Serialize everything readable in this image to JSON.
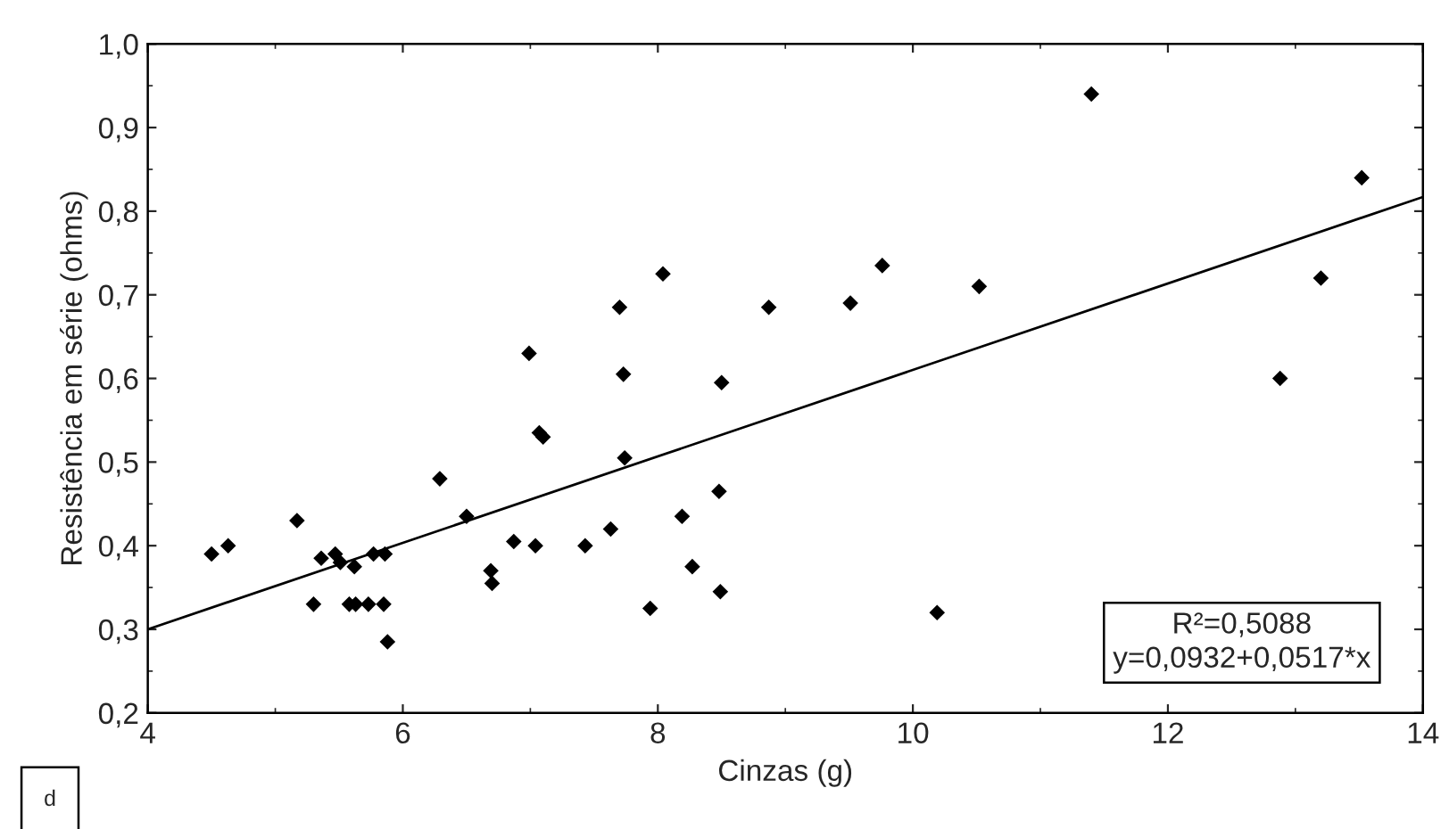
{
  "chart_data": {
    "type": "scatter",
    "xlabel": "Cinzas (g)",
    "ylabel": "Resistência em série (ohms)",
    "xlim": [
      4,
      14
    ],
    "xticks": [
      4,
      6,
      8,
      10,
      12,
      14
    ],
    "ylim": [
      0.2,
      1.0
    ],
    "yticks": [
      {
        "value": 0.2,
        "label": "0,2"
      },
      {
        "value": 0.3,
        "label": "0,3"
      },
      {
        "value": 0.4,
        "label": "0,4"
      },
      {
        "value": 0.5,
        "label": "0,5"
      },
      {
        "value": 0.6,
        "label": "0,6"
      },
      {
        "value": 0.7,
        "label": "0,7"
      },
      {
        "value": 0.8,
        "label": "0,8"
      },
      {
        "value": 0.9,
        "label": "0,9"
      },
      {
        "value": 1.0,
        "label": "1,0"
      }
    ],
    "grid": false,
    "marker": "diamond",
    "series": [
      {
        "color": "#000000",
        "x": [
          4.5,
          4.63,
          5.17,
          5.3,
          5.36,
          5.47,
          5.51,
          5.62,
          5.58,
          5.63,
          5.73,
          5.77,
          5.86,
          5.85,
          5.88,
          6.29,
          6.5,
          6.69,
          6.7,
          6.87,
          6.99,
          7.04,
          7.07,
          7.1,
          7.43,
          7.63,
          7.7,
          7.73,
          7.74,
          7.94,
          8.04,
          8.19,
          8.27,
          8.48,
          8.49,
          8.5,
          8.87,
          9.51,
          9.76,
          10.19,
          10.52,
          11.4,
          12.88,
          13.2,
          13.52
        ],
        "values": [
          0.39,
          0.4,
          0.43,
          0.33,
          0.385,
          0.39,
          0.38,
          0.375,
          0.33,
          0.33,
          0.33,
          0.39,
          0.39,
          0.33,
          0.285,
          0.48,
          0.435,
          0.37,
          0.355,
          0.405,
          0.63,
          0.4,
          0.535,
          0.53,
          0.4,
          0.42,
          0.685,
          0.605,
          0.505,
          0.325,
          0.725,
          0.435,
          0.375,
          0.465,
          0.345,
          0.595,
          0.685,
          0.69,
          0.735,
          0.32,
          0.71,
          0.94,
          0.6,
          0.72,
          0.84
        ]
      },
      {
        "type": "line",
        "color": "#000000",
        "marker": "none",
        "x": [
          4,
          14
        ],
        "values": [
          0.3,
          0.817
        ]
      }
    ],
    "annotations": [
      "R²=0,5088\ny=0,0932+0,0517*x",
      "d"
    ]
  }
}
